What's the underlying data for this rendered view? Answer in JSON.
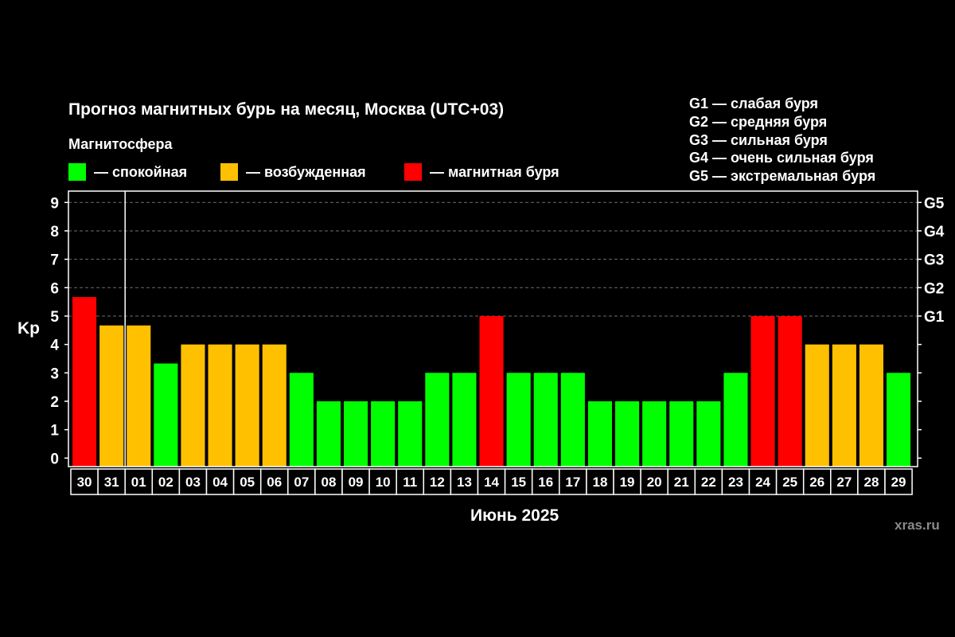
{
  "chart_data": {
    "type": "bar",
    "title": "Прогноз магнитных бурь на месяц, Москва (UTC+03)",
    "legend_title": "Магнитосфера",
    "legend": [
      {
        "label": "— спокойная",
        "color": "#00ff00"
      },
      {
        "label": "— возбужденная",
        "color": "#ffc000"
      },
      {
        "label": "— магнитная буря",
        "color": "#ff0000"
      }
    ],
    "storm_levels": [
      "G1 — слабая буря",
      "G2 — средняя буря",
      "G3 — сильная буря",
      "G4 — очень сильная буря",
      "G5 — экстремальная буря"
    ],
    "xlabel": "Июнь 2025",
    "ylabel": "Kp",
    "ylim": [
      -0.3,
      9.4
    ],
    "yticks": [
      0,
      1,
      2,
      3,
      4,
      5,
      6,
      7,
      8,
      9
    ],
    "right_ticks": [
      {
        "value": 5,
        "label": "G1"
      },
      {
        "value": 6,
        "label": "G2"
      },
      {
        "value": 7,
        "label": "G3"
      },
      {
        "value": 8,
        "label": "G4"
      },
      {
        "value": 9,
        "label": "G5"
      }
    ],
    "grid": "horizontal dashed from 5 to 9",
    "categories": [
      "30",
      "31",
      "01",
      "02",
      "03",
      "04",
      "05",
      "06",
      "07",
      "08",
      "09",
      "10",
      "11",
      "12",
      "13",
      "14",
      "15",
      "16",
      "17",
      "18",
      "19",
      "20",
      "21",
      "22",
      "23",
      "24",
      "25",
      "26",
      "27",
      "28",
      "29"
    ],
    "values": [
      5.67,
      4.67,
      4.67,
      3.33,
      4,
      4,
      4,
      4,
      3,
      2,
      2,
      2,
      2,
      3,
      3,
      5,
      3,
      3,
      3,
      2,
      2,
      2,
      2,
      2,
      3,
      5,
      5,
      4,
      4,
      4,
      3
    ],
    "bar_colors": [
      "#ff0000",
      "#ffc000",
      "#ffc000",
      "#00ff00",
      "#ffc000",
      "#ffc000",
      "#ffc000",
      "#ffc000",
      "#00ff00",
      "#00ff00",
      "#00ff00",
      "#00ff00",
      "#00ff00",
      "#00ff00",
      "#00ff00",
      "#ff0000",
      "#00ff00",
      "#00ff00",
      "#00ff00",
      "#00ff00",
      "#00ff00",
      "#00ff00",
      "#00ff00",
      "#00ff00",
      "#00ff00",
      "#ff0000",
      "#ff0000",
      "#ffc000",
      "#ffc000",
      "#ffc000",
      "#00ff00"
    ]
  },
  "watermark": "xras.ru"
}
